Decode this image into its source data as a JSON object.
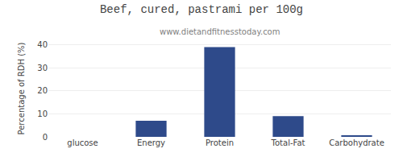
{
  "chart_data": {
    "type": "bar",
    "title": "Beef, cured, pastrami per 100g",
    "subtitle": "www.dietandfitnesstoday.com",
    "categories": [
      "glucose",
      "Energy",
      "Protein",
      "Total-Fat",
      "Carbohydrate"
    ],
    "values": [
      0,
      7,
      39,
      9,
      0.5
    ],
    "color": "#2e4a8a",
    "ylabel": "Percentage of RDH (%)",
    "ylim": [
      0,
      42
    ],
    "yticks": [
      0,
      10,
      20,
      30,
      40
    ],
    "grid": true
  }
}
